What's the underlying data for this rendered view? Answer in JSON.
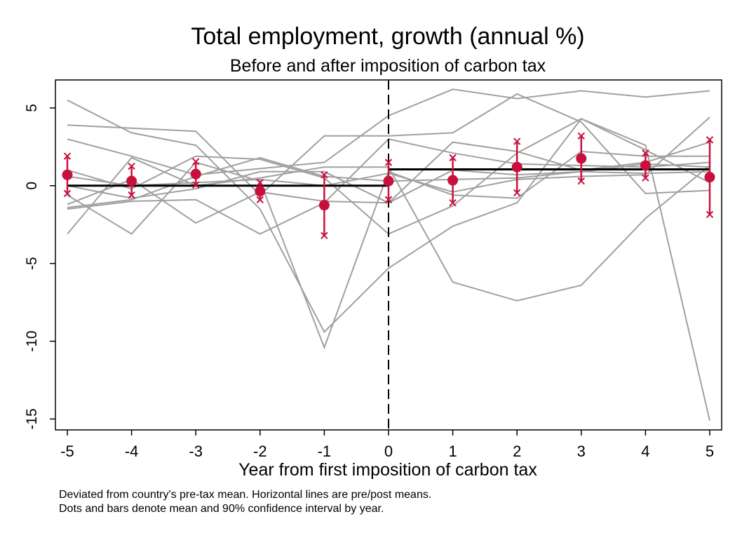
{
  "chart_data": {
    "type": "line",
    "title": "Total employment, growth (annual %)",
    "subtitle": "Before and after imposition of carbon tax",
    "xlabel": "Year from first imposition of carbon tax",
    "ylabel": "",
    "x": [
      -5,
      -4,
      -3,
      -2,
      -1,
      0,
      1,
      2,
      3,
      4,
      5
    ],
    "xlim": [
      -5,
      5
    ],
    "ylim": [
      -15.7,
      6.8
    ],
    "xticks": [
      "-5",
      "-4",
      "-3",
      "-2",
      "-1",
      "0",
      "1",
      "2",
      "3",
      "4",
      "5"
    ],
    "yticks": [
      {
        "value": 5,
        "label": "5"
      },
      {
        "value": 0,
        "label": "0"
      },
      {
        "value": -5,
        "label": "-5"
      },
      {
        "value": -10,
        "label": "-10"
      },
      {
        "value": -15,
        "label": "-15"
      }
    ],
    "vline_x": 0,
    "country_series": [
      {
        "values": [
          5.5,
          3.4,
          2.6,
          -1.5,
          -9.4,
          -5.3,
          -2.6,
          -1.1,
          4.3,
          2.6,
          -15.1
        ]
      },
      {
        "values": [
          3.9,
          3.7,
          3.5,
          -0.6,
          3.2,
          3.2,
          3.4,
          5.9,
          4.1,
          -0.5,
          -0.3
        ]
      },
      {
        "values": [
          3.0,
          1.9,
          0.7,
          1.1,
          1.5,
          4.5,
          6.2,
          5.6,
          6.1,
          5.7,
          6.1
        ]
      },
      {
        "values": [
          1.0,
          -0.2,
          1.9,
          1.7,
          0.5,
          -3.1,
          -1.3,
          2.1,
          4.3,
          2.3,
          0.2
        ]
      },
      {
        "values": [
          0.0,
          -0.8,
          -0.2,
          0.9,
          0.9,
          -1.1,
          1.0,
          0.7,
          0.9,
          1.4,
          1.2
        ]
      },
      {
        "values": [
          -0.6,
          -3.1,
          1.5,
          0.3,
          -10.4,
          0.9,
          -0.6,
          -0.8,
          2.2,
          1.9,
          1.9
        ]
      },
      {
        "values": [
          -1.2,
          0.4,
          -2.4,
          -0.4,
          -1.0,
          -1.1,
          2.8,
          2.2,
          1.0,
          1.5,
          2.8
        ]
      },
      {
        "values": [
          -1.5,
          -1.0,
          -0.9,
          -3.1,
          -1.1,
          3.0,
          2.1,
          1.4,
          1.3,
          1.2,
          1.5
        ]
      },
      {
        "values": [
          -3.1,
          1.8,
          0.0,
          0.5,
          1.2,
          1.2,
          -6.2,
          -7.4,
          -6.4,
          -2.1,
          1.3
        ]
      },
      {
        "values": [
          -1.4,
          -0.9,
          0.6,
          1.8,
          0.6,
          0.3,
          0.4,
          0.5,
          0.9,
          0.8,
          0.9
        ]
      },
      {
        "values": [
          0.6,
          0.0,
          0.2,
          0.4,
          0.0,
          0.8,
          -0.4,
          0.4,
          0.6,
          0.7,
          4.4
        ]
      }
    ],
    "pre_mean": {
      "x": [
        -5,
        0
      ],
      "y": 0
    },
    "post_mean": {
      "x": [
        0,
        5
      ],
      "y": 1.05
    },
    "means": [
      0.7,
      0.3,
      0.75,
      -0.35,
      -1.25,
      0.3,
      0.35,
      1.2,
      1.75,
      1.3,
      0.55
    ],
    "ci_lower": [
      -0.5,
      -0.6,
      0.05,
      -0.9,
      -3.2,
      -0.9,
      -1.1,
      -0.45,
      0.3,
      0.5,
      -1.85
    ],
    "ci_upper": [
      1.9,
      1.25,
      1.55,
      0.2,
      0.7,
      1.5,
      1.8,
      2.85,
      3.2,
      2.1,
      2.95
    ],
    "grid": false,
    "colors": {
      "country": "#a0a0a0",
      "mean": "#c8103d",
      "mean_line": "#000000"
    }
  },
  "notes": [
    "Deviated from country's pre-tax mean. Horizontal lines are pre/post means.",
    "Dots and bars denote mean and 90% confidence interval by year."
  ]
}
